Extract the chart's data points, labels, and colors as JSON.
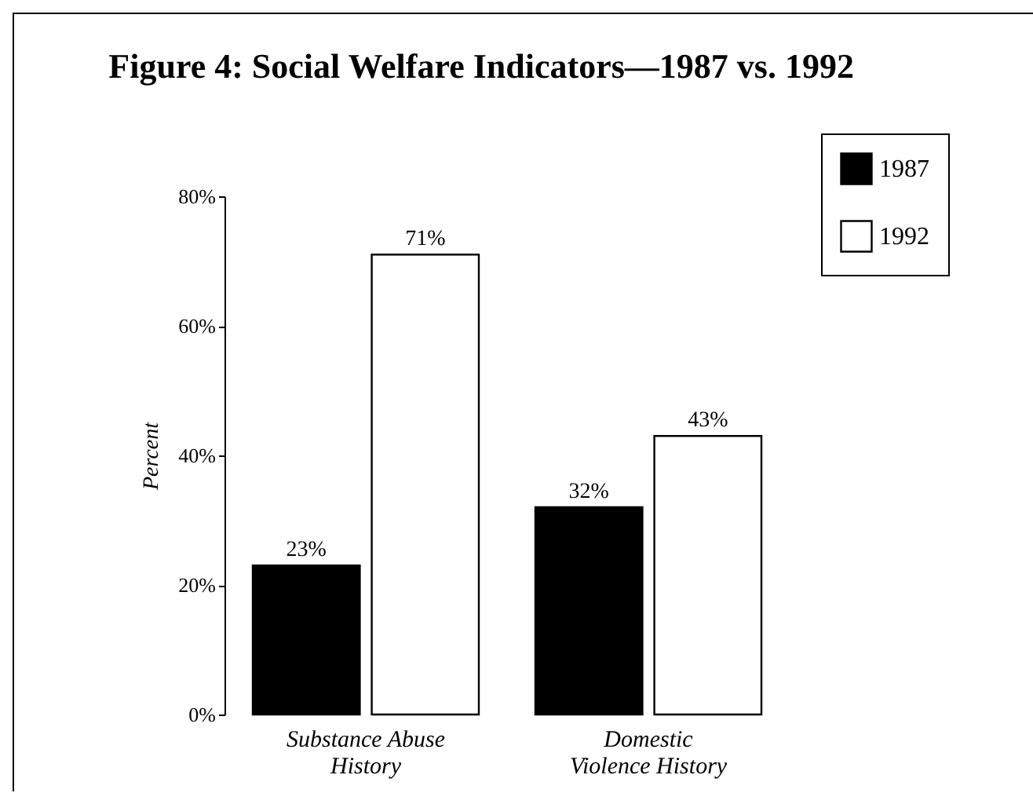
{
  "chart_data": {
    "type": "bar",
    "title": "Figure 4: Social Welfare Indicators—1987 vs. 1992",
    "ylabel": "Percent",
    "categories": [
      "Substance Abuse History",
      "Domestic Violence History"
    ],
    "series": [
      {
        "name": "1987",
        "color": "#000000",
        "values": [
          23,
          32
        ],
        "value_labels": [
          "23%",
          "32%"
        ]
      },
      {
        "name": "1992",
        "color": "#ffffff",
        "values": [
          71,
          43
        ],
        "value_labels": [
          "71%",
          "43%"
        ]
      }
    ],
    "ylim": [
      0,
      80
    ],
    "yticks": [
      {
        "value": 0,
        "label": "0%"
      },
      {
        "value": 20,
        "label": "20%"
      },
      {
        "value": 40,
        "label": "40%"
      },
      {
        "value": 60,
        "label": "60%"
      },
      {
        "value": 80,
        "label": "80%"
      }
    ],
    "grid": false,
    "legend": "top right"
  }
}
